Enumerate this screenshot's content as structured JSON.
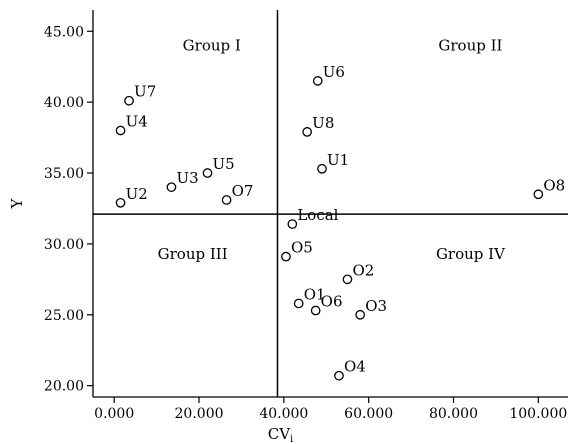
{
  "chart_data": {
    "type": "scatter",
    "xlabel": "CV",
    "xlabel_subscript": "i",
    "ylabel": "Y",
    "xlim": [
      -5,
      107
    ],
    "ylim": [
      19.2,
      46.5
    ],
    "x_ticks": [
      0,
      20,
      40,
      60,
      80,
      100
    ],
    "x_tick_labels": [
      "0.000",
      "20.000",
      "40.000",
      "60.000",
      "80.000",
      "100.000"
    ],
    "y_ticks": [
      20,
      25,
      30,
      35,
      40,
      45
    ],
    "y_tick_labels": [
      "20.00",
      "25.00",
      "30.00",
      "35.00",
      "40.00",
      "45.00"
    ],
    "grid": false,
    "reference_lines": {
      "x": 38.5,
      "y": 32.1
    },
    "groups": [
      {
        "label": "Group I",
        "x": 23,
        "y": 44
      },
      {
        "label": "Group II",
        "x": 84,
        "y": 44
      },
      {
        "label": "Group III",
        "x": 18.5,
        "y": 29.3
      },
      {
        "label": "Group IV",
        "x": 84,
        "y": 29.3
      }
    ],
    "points": [
      {
        "label": "U7",
        "x": 3.5,
        "y": 40.1
      },
      {
        "label": "U4",
        "x": 1.5,
        "y": 38.0
      },
      {
        "label": "U2",
        "x": 1.5,
        "y": 32.9
      },
      {
        "label": "U3",
        "x": 13.5,
        "y": 34.0
      },
      {
        "label": "U5",
        "x": 22.0,
        "y": 35.0
      },
      {
        "label": "O7",
        "x": 26.5,
        "y": 33.1
      },
      {
        "label": "U6",
        "x": 48.0,
        "y": 41.5
      },
      {
        "label": "U8",
        "x": 45.5,
        "y": 37.9
      },
      {
        "label": "U1",
        "x": 49.0,
        "y": 35.3
      },
      {
        "label": "O8",
        "x": 100.0,
        "y": 33.5
      },
      {
        "label": "Local",
        "x": 42.0,
        "y": 31.4
      },
      {
        "label": "O5",
        "x": 40.5,
        "y": 29.1
      },
      {
        "label": "O2",
        "x": 55.0,
        "y": 27.5
      },
      {
        "label": "O1",
        "x": 43.5,
        "y": 25.8
      },
      {
        "label": "O6",
        "x": 47.5,
        "y": 25.3
      },
      {
        "label": "O3",
        "x": 58.0,
        "y": 25.0
      },
      {
        "label": "O4",
        "x": 53.0,
        "y": 20.7
      }
    ]
  }
}
